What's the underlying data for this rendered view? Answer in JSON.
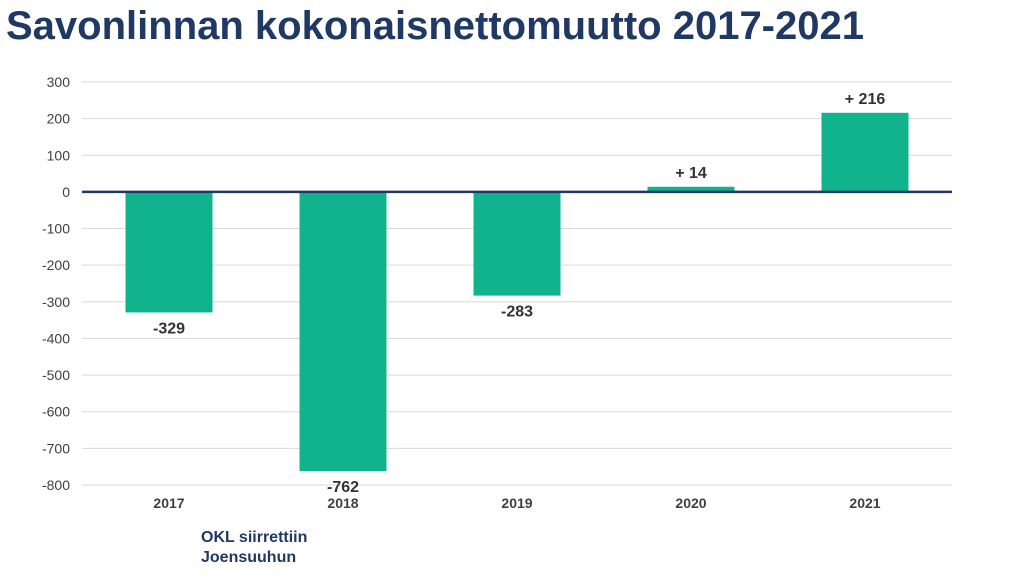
{
  "title": "Savonlinnan kokonaisnettomuutto 2017-2021",
  "annotation": {
    "line1": "OKL siirrettiin",
    "line2": "Joensuuhun"
  },
  "colors": {
    "bar": "#11b38c",
    "title": "#1f3864",
    "zero_line": "#1f3864",
    "grid": "#d9d9d9",
    "label": "#333333",
    "tick": "#404040"
  },
  "chart_data": {
    "type": "bar",
    "title": "Savonlinnan kokonaisnettomuutto 2017-2021",
    "xlabel": "",
    "ylabel": "",
    "categories": [
      "2017",
      "2018",
      "2019",
      "2020",
      "2021"
    ],
    "values": [
      -329,
      -762,
      -283,
      14,
      216
    ],
    "data_labels": [
      "-329",
      "-762",
      "-283",
      "+ 14",
      "+ 216"
    ],
    "ylim": [
      -800,
      300
    ],
    "yticks": [
      300,
      200,
      100,
      0,
      -100,
      -200,
      -300,
      -400,
      -500,
      -600,
      -700,
      -800
    ],
    "grid": true,
    "legend": "none"
  }
}
